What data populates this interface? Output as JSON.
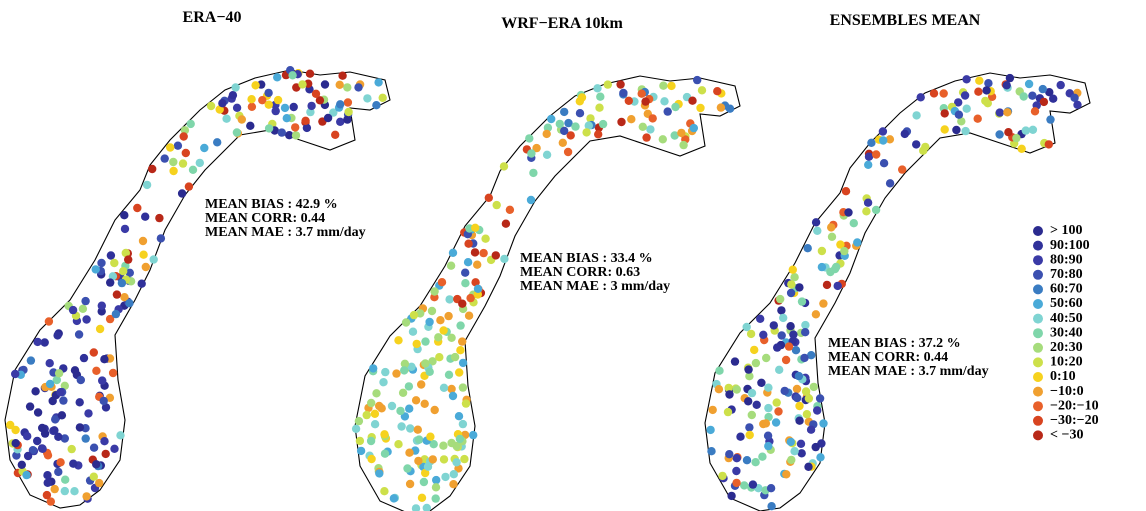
{
  "panels": [
    {
      "title": "ERA−40",
      "stats": [
        "MEAN BIAS  :  42.9 %",
        "MEAN CORR: 0.44",
        "MEAN MAE  : 3.7 mm/day"
      ]
    },
    {
      "title": "WRF−ERA 10km",
      "stats": [
        "MEAN BIAS  :  33.4 %",
        "MEAN CORR: 0.63",
        "MEAN MAE  :  3 mm/day"
      ]
    },
    {
      "title": "ENSEMBLES MEAN",
      "stats": [
        "MEAN BIAS  :  37.2 %",
        "MEAN CORR: 0.44",
        "MEAN MAE  :  3.7 mm/day"
      ]
    }
  ],
  "legend": [
    {
      "label": "> 100",
      "color": "#2b2b8f"
    },
    {
      "label": "90:100",
      "color": "#30319a"
    },
    {
      "label": "80:90",
      "color": "#3a3aa6"
    },
    {
      "label": "70:80",
      "color": "#3b50b0"
    },
    {
      "label": "60:70",
      "color": "#3a7cc2"
    },
    {
      "label": "50:60",
      "color": "#4aaad8"
    },
    {
      "label": "40:50",
      "color": "#7fd4d2"
    },
    {
      "label": "30:40",
      "color": "#7fd6aa"
    },
    {
      "label": "20:30",
      "color": "#a6dc7c"
    },
    {
      "label": "10:20",
      "color": "#cde04a"
    },
    {
      "label": "0:10",
      "color": "#f6d21e"
    },
    {
      "label": "−10:0",
      "color": "#f0a030"
    },
    {
      "label": "−20:−10",
      "color": "#e8602a"
    },
    {
      "label": "−30:−20",
      "color": "#d84420"
    },
    {
      "label": "< −30",
      "color": "#b82818"
    }
  ]
}
